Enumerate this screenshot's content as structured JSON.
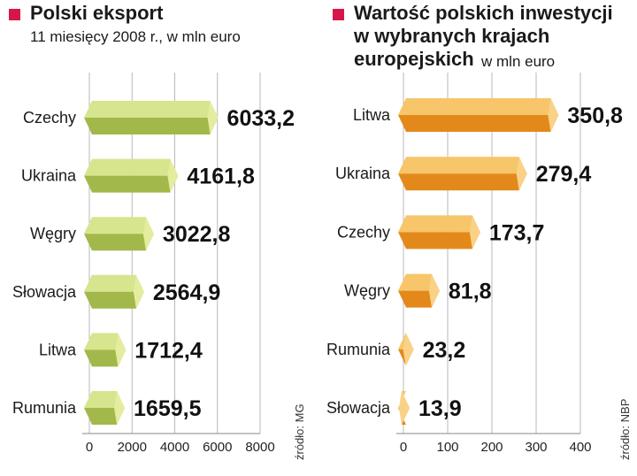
{
  "charts": [
    {
      "title": "Polski eksport",
      "subtitle": "11 miesięcy 2008 r., w mln euro",
      "source": "źródło: MG",
      "colors": {
        "front": "#bcd064",
        "top": "#d6e58e",
        "end": "#e4ed9e",
        "bottom": "#a2b84a"
      },
      "chart_data": {
        "type": "bar",
        "orientation": "horizontal",
        "categories": [
          "Czechy",
          "Ukraina",
          "Węgry",
          "Słowacja",
          "Litwa",
          "Rumunia"
        ],
        "values": [
          6033.2,
          4161.8,
          3022.8,
          2564.9,
          1712.4,
          1659.5
        ],
        "value_labels": [
          "6033,2",
          "4161,8",
          "3022,8",
          "2564,9",
          "1712,4",
          "1659,5"
        ],
        "xlim": [
          0,
          8000
        ],
        "xticks": [
          "0",
          "2000",
          "4000",
          "6000",
          "8000"
        ],
        "grid": true
      }
    },
    {
      "title_lines": [
        "Wartość polskich inwestycji",
        "w wybranych krajach",
        "europejskich"
      ],
      "subtitle": "w mln euro",
      "source": "źródło: NBP",
      "colors": {
        "front": "#f0a83a",
        "top": "#f7c56a",
        "end": "#fad287",
        "bottom": "#e3891c"
      },
      "chart_data": {
        "type": "bar",
        "orientation": "horizontal",
        "categories": [
          "Litwa",
          "Ukraina",
          "Czechy",
          "Węgry",
          "Rumunia",
          "Słowacja"
        ],
        "values": [
          350.8,
          279.4,
          173.7,
          81.8,
          23.2,
          13.9
        ],
        "value_labels": [
          "350,8",
          "279,4",
          "173,7",
          "81,8",
          "23,2",
          "13,9"
        ],
        "xlim": [
          0,
          400
        ],
        "xticks": [
          "0",
          "100",
          "200",
          "300",
          "400"
        ],
        "grid": true
      }
    }
  ]
}
